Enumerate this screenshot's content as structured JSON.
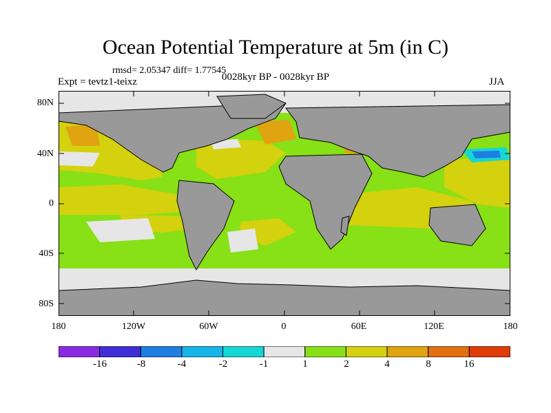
{
  "title": "Ocean Potential Temperature at 5m (in C)",
  "stats": "rmsd= 2.05347 diff= 1.77545",
  "experiment": "Expt = tevtz1-teixz",
  "period": "0028kyr BP - 0028kyr BP",
  "season": "JJA",
  "axes": {
    "y_labels": [
      "80N",
      "40N",
      "0",
      "40S",
      "80S"
    ],
    "x_labels": [
      "180",
      "120W",
      "60W",
      "0",
      "60E",
      "120E",
      "180"
    ]
  },
  "colorbar": {
    "colors": [
      "#8a2be2",
      "#3e2fd6",
      "#1e7fe0",
      "#17b4e8",
      "#16d6d6",
      "#e6e6e6",
      "#88e016",
      "#d4d10e",
      "#e0a410",
      "#e07010",
      "#e03c08"
    ],
    "labels": [
      "-16",
      "-8",
      "-4",
      "-2",
      "-1",
      "1",
      "2",
      "4",
      "8",
      "16"
    ]
  },
  "colors": {
    "land": "#999999",
    "ice_white": "#e6e6e6",
    "light_green": "#88e016",
    "olive_yellow": "#d4d10e",
    "orange": "#e0a410",
    "cyan": "#16d6d6",
    "blue": "#1e7fe0"
  }
}
